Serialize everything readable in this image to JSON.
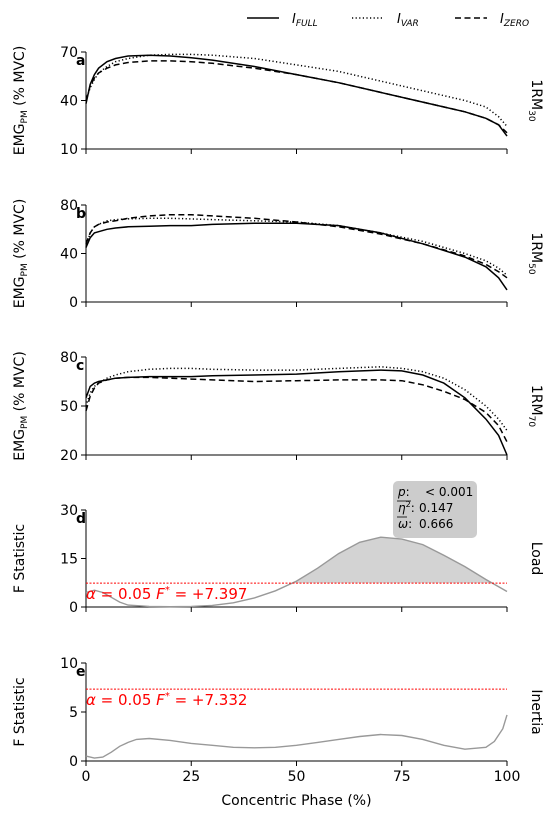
{
  "legend": {
    "placement": "top-right",
    "entries": [
      {
        "base": "I",
        "sub": "FULL",
        "style": "solid"
      },
      {
        "base": "I",
        "sub": "VAR",
        "style": "dotted"
      },
      {
        "base": "I",
        "sub": "ZERO",
        "style": "dashed"
      }
    ]
  },
  "xlabel": "Concentric Phase (%)",
  "xticks": [
    "0",
    "25",
    "50",
    "75",
    "100"
  ],
  "chart_data": [
    {
      "type": "line",
      "panel": "a",
      "ylabel": {
        "base": "EMG",
        "sub": "PM",
        "rest": " (% MVC)"
      },
      "side_label": {
        "base": "1RM",
        "sub": "30"
      },
      "xlim": [
        0,
        100
      ],
      "ylim": [
        10,
        70
      ],
      "yticks": [
        "10",
        "40",
        "70"
      ],
      "x": [
        0,
        1,
        2,
        3,
        5,
        7,
        10,
        15,
        20,
        25,
        30,
        40,
        50,
        60,
        70,
        80,
        90,
        95,
        98,
        100
      ],
      "series": [
        {
          "name": "I_FULL",
          "style": "solid",
          "values": [
            38,
            50,
            56,
            60,
            64,
            66,
            67.5,
            68,
            67.5,
            66.5,
            65,
            61,
            56,
            51,
            45,
            39,
            33,
            29,
            25,
            18
          ]
        },
        {
          "name": "I_VAR",
          "style": "dotted",
          "values": [
            40,
            48,
            53,
            57,
            61,
            64,
            66,
            68,
            68.5,
            68.5,
            68,
            66,
            62,
            58,
            52,
            46,
            40,
            36,
            30,
            24
          ]
        },
        {
          "name": "I_ZERO",
          "style": "dashed",
          "values": [
            40,
            49,
            54,
            57,
            60,
            62,
            63.5,
            64.5,
            64.5,
            64,
            63,
            60,
            56,
            51,
            45,
            39,
            33,
            29,
            25,
            20
          ]
        }
      ]
    },
    {
      "type": "line",
      "panel": "b",
      "ylabel": {
        "base": "EMG",
        "sub": "PM",
        "rest": " (% MVC)"
      },
      "side_label": {
        "base": "1RM",
        "sub": "50"
      },
      "xlim": [
        0,
        100
      ],
      "ylim": [
        0,
        80
      ],
      "yticks": [
        "0",
        "40",
        "80"
      ],
      "x": [
        0,
        1,
        2,
        3,
        5,
        7,
        10,
        15,
        20,
        25,
        30,
        40,
        50,
        60,
        70,
        80,
        90,
        95,
        98,
        100
      ],
      "series": [
        {
          "name": "I_FULL",
          "style": "solid",
          "values": [
            45,
            53,
            57,
            58,
            60,
            61,
            62,
            62.5,
            63,
            63,
            64,
            65,
            65,
            63,
            57,
            48,
            37,
            29,
            20,
            10
          ]
        },
        {
          "name": "I_VAR",
          "style": "dotted",
          "values": [
            45,
            57,
            62,
            64,
            67,
            68,
            68.5,
            69,
            69,
            68.5,
            68,
            67,
            66,
            63,
            57,
            50,
            40,
            34,
            28,
            22
          ]
        },
        {
          "name": "I_ZERO",
          "style": "dashed",
          "values": [
            48,
            57,
            62,
            64,
            66,
            67,
            69,
            71,
            72,
            72,
            71,
            69,
            66,
            62,
            56,
            48,
            38,
            31,
            25,
            20
          ]
        }
      ]
    },
    {
      "type": "line",
      "panel": "c",
      "ylabel": {
        "base": "EMG",
        "sub": "PM",
        "rest": " (% MVC)"
      },
      "side_label": {
        "base": "1RM",
        "sub": "70"
      },
      "xlim": [
        0,
        100
      ],
      "ylim": [
        20,
        80
      ],
      "yticks": [
        "20",
        "50",
        "80"
      ],
      "x": [
        0,
        1,
        2,
        3,
        5,
        7,
        10,
        15,
        20,
        25,
        30,
        40,
        50,
        60,
        70,
        75,
        80,
        85,
        90,
        95,
        98,
        100
      ],
      "series": [
        {
          "name": "I_FULL",
          "style": "solid",
          "values": [
            55,
            62,
            64,
            65,
            66,
            67,
            67.5,
            68,
            68,
            68,
            68.5,
            69,
            69.5,
            71,
            72,
            71.5,
            69,
            64,
            55,
            42,
            32,
            20
          ]
        },
        {
          "name": "I_VAR",
          "style": "dotted",
          "values": [
            50,
            58,
            62,
            64,
            67,
            69,
            71,
            72.5,
            73,
            73,
            72.5,
            72,
            72,
            73,
            74,
            73,
            71,
            67,
            60,
            50,
            42,
            35
          ]
        },
        {
          "name": "I_ZERO",
          "style": "dashed",
          "values": [
            47,
            56,
            61,
            64,
            66,
            67,
            67.5,
            67.5,
            67,
            66.5,
            66,
            65,
            65.5,
            66,
            66,
            65.5,
            63,
            59,
            54,
            46,
            38,
            28
          ]
        }
      ]
    },
    {
      "type": "area",
      "panel": "d",
      "ylabel": "F Statistic",
      "side_label": "Load",
      "xlim": [
        0,
        100
      ],
      "ylim": [
        0,
        30
      ],
      "yticks": [
        "0",
        "15",
        "30"
      ],
      "x": [
        0,
        2,
        4,
        6,
        8,
        10,
        15,
        20,
        25,
        30,
        35,
        40,
        45,
        50,
        55,
        60,
        65,
        70,
        75,
        80,
        85,
        90,
        95,
        100
      ],
      "series": [
        {
          "name": "F",
          "values": [
            4.5,
            5.2,
            4.5,
            3,
            1.5,
            0.6,
            0.2,
            0.1,
            0.2,
            0.5,
            1.3,
            2.8,
            5,
            8,
            12,
            16.5,
            20,
            21.6,
            21,
            19.3,
            16,
            12.5,
            8.5,
            4.8
          ]
        }
      ],
      "threshold": 7.397,
      "threshold_label": {
        "alpha": "α",
        "alpha_value": "= 0.05",
        "fstar": "F",
        "fstar_sup": "*",
        "fstar_value": "= +7.397"
      },
      "stats": [
        {
          "sym": "p",
          "sep": ":",
          "value": "< 0.001"
        },
        {
          "sym": "η",
          "sup": "2",
          "sep": ":",
          "value": "0.147"
        },
        {
          "sym": "ω",
          "sep": ":",
          "value": "0.666"
        }
      ]
    },
    {
      "type": "line",
      "panel": "e",
      "ylabel": "F Statistic",
      "side_label": "Inertia",
      "xlim": [
        0,
        100
      ],
      "ylim": [
        0,
        10
      ],
      "yticks": [
        "0",
        "5",
        "10"
      ],
      "x": [
        0,
        2,
        4,
        6,
        8,
        10,
        12,
        15,
        20,
        25,
        30,
        35,
        40,
        45,
        50,
        55,
        60,
        65,
        70,
        75,
        80,
        85,
        90,
        95,
        97,
        99,
        100
      ],
      "series": [
        {
          "name": "F",
          "values": [
            0.5,
            0.3,
            0.4,
            0.9,
            1.5,
            1.9,
            2.2,
            2.3,
            2.1,
            1.8,
            1.6,
            1.4,
            1.35,
            1.4,
            1.6,
            1.9,
            2.2,
            2.5,
            2.7,
            2.6,
            2.2,
            1.6,
            1.2,
            1.4,
            2,
            3.3,
            4.7
          ]
        }
      ],
      "threshold": 7.332,
      "threshold_label": {
        "alpha": "α",
        "alpha_value": "= 0.05",
        "fstar": "F",
        "fstar_sup": "*",
        "fstar_value": "= +7.332"
      }
    }
  ]
}
